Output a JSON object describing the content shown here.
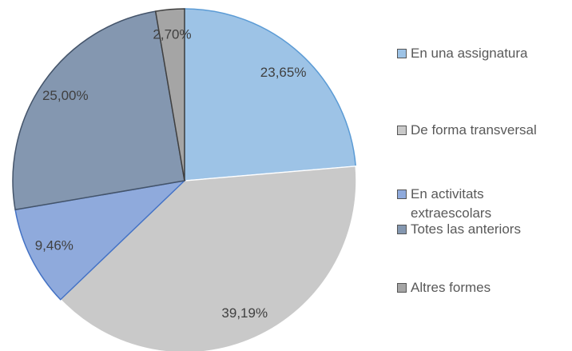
{
  "chart_data": {
    "type": "pie",
    "categories": [
      "En una assignatura",
      "De forma transversal",
      "En activitats extraescolars",
      "Totes las anteriors",
      "Altres formes"
    ],
    "values": [
      23.65,
      39.19,
      9.46,
      25.0,
      2.7
    ],
    "value_labels": [
      "23,65%",
      "39,19%",
      "9,46%",
      "25,00%",
      "2,70%"
    ],
    "colors": [
      "#9dc3e6",
      "#c9c9c9",
      "#8faadc",
      "#8497b0",
      "#a5a5a5"
    ],
    "legend": "right"
  }
}
